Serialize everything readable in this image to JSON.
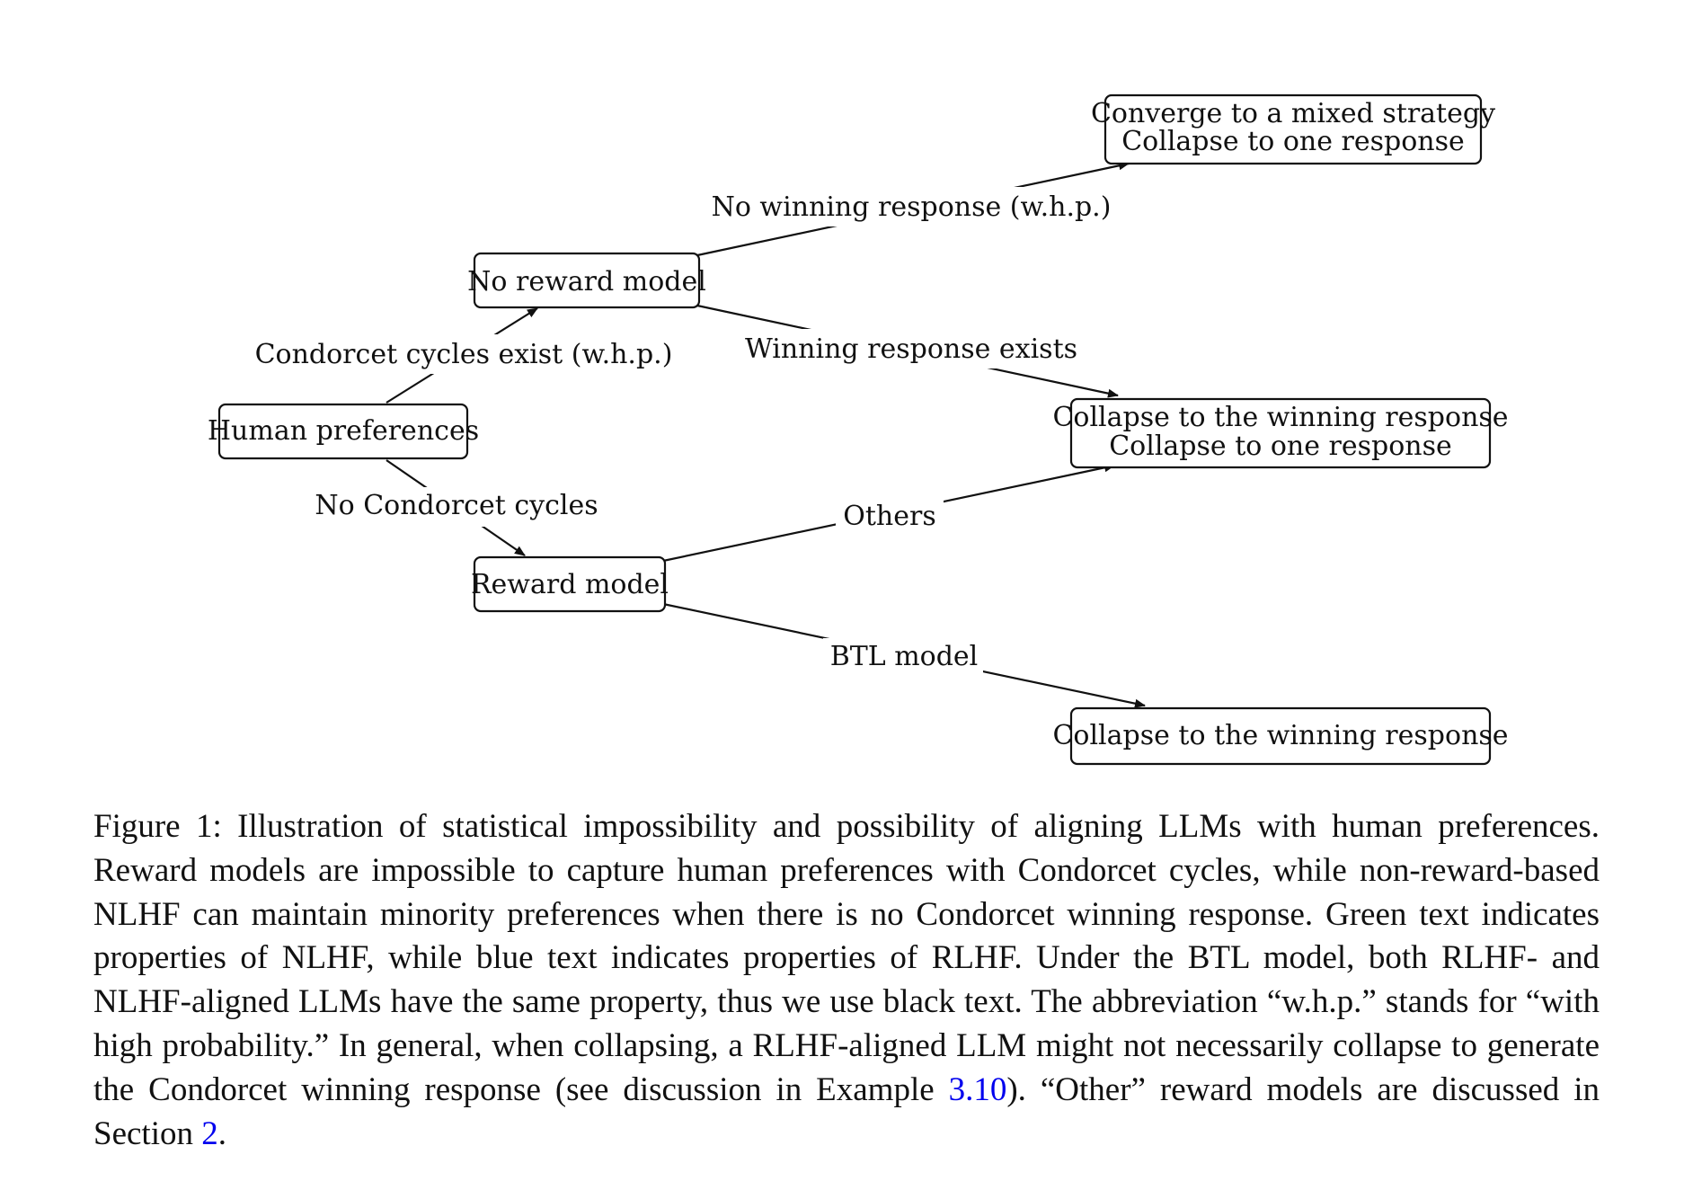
{
  "colors": {
    "nlhf_green": "#3a9a5b",
    "rlhf_blue": "#1a1ae6",
    "link_blue": "#0000ee",
    "ink": "#111111"
  },
  "diagram": {
    "nodes": {
      "human_preferences": "Human preferences",
      "no_reward_model": "No reward model",
      "reward_model": "Reward model",
      "mixed_strategy": {
        "green": "Converge to a mixed strategy",
        "blue": "Collapse to one response"
      },
      "winning_collapse": {
        "green": "Collapse to the winning response",
        "blue": "Collapse to one response"
      },
      "btl_result": "Collapse to the winning response"
    },
    "edges": {
      "condorcet_cycles_exist": "Condorcet cycles exist (w.h.p.)",
      "no_condorcet_cycles": "No Condorcet cycles",
      "no_winning_response": "No winning response (w.h.p.)",
      "winning_response_exists": "Winning response exists",
      "others": "Others",
      "btl_model": "BTL model"
    }
  },
  "caption": {
    "text_1": "Figure 1:  Illustration of statistical impossibility and possibility of aligning LLMs with human preferences. Reward models are impossible to capture human preferences with Condorcet cycles, while non-reward-based NLHF can maintain minority preferences when there is no Condorcet winning response. Green text indicates properties of NLHF, while blue text indicates properties of RLHF. Under the BTL model, both RLHF- and NLHF-aligned LLMs have the same property, thus we use black text.  The abbreviation “w.h.p.” stands for “with high probability.” In general, when collapsing, a RLHF-aligned LLM might not necessarily collapse to generate the Condorcet winning response (see discussion in Example ",
    "ref_example": "3.10",
    "text_2": ").  “Other” reward models are discussed in Section ",
    "ref_section": "2",
    "text_3": "."
  }
}
